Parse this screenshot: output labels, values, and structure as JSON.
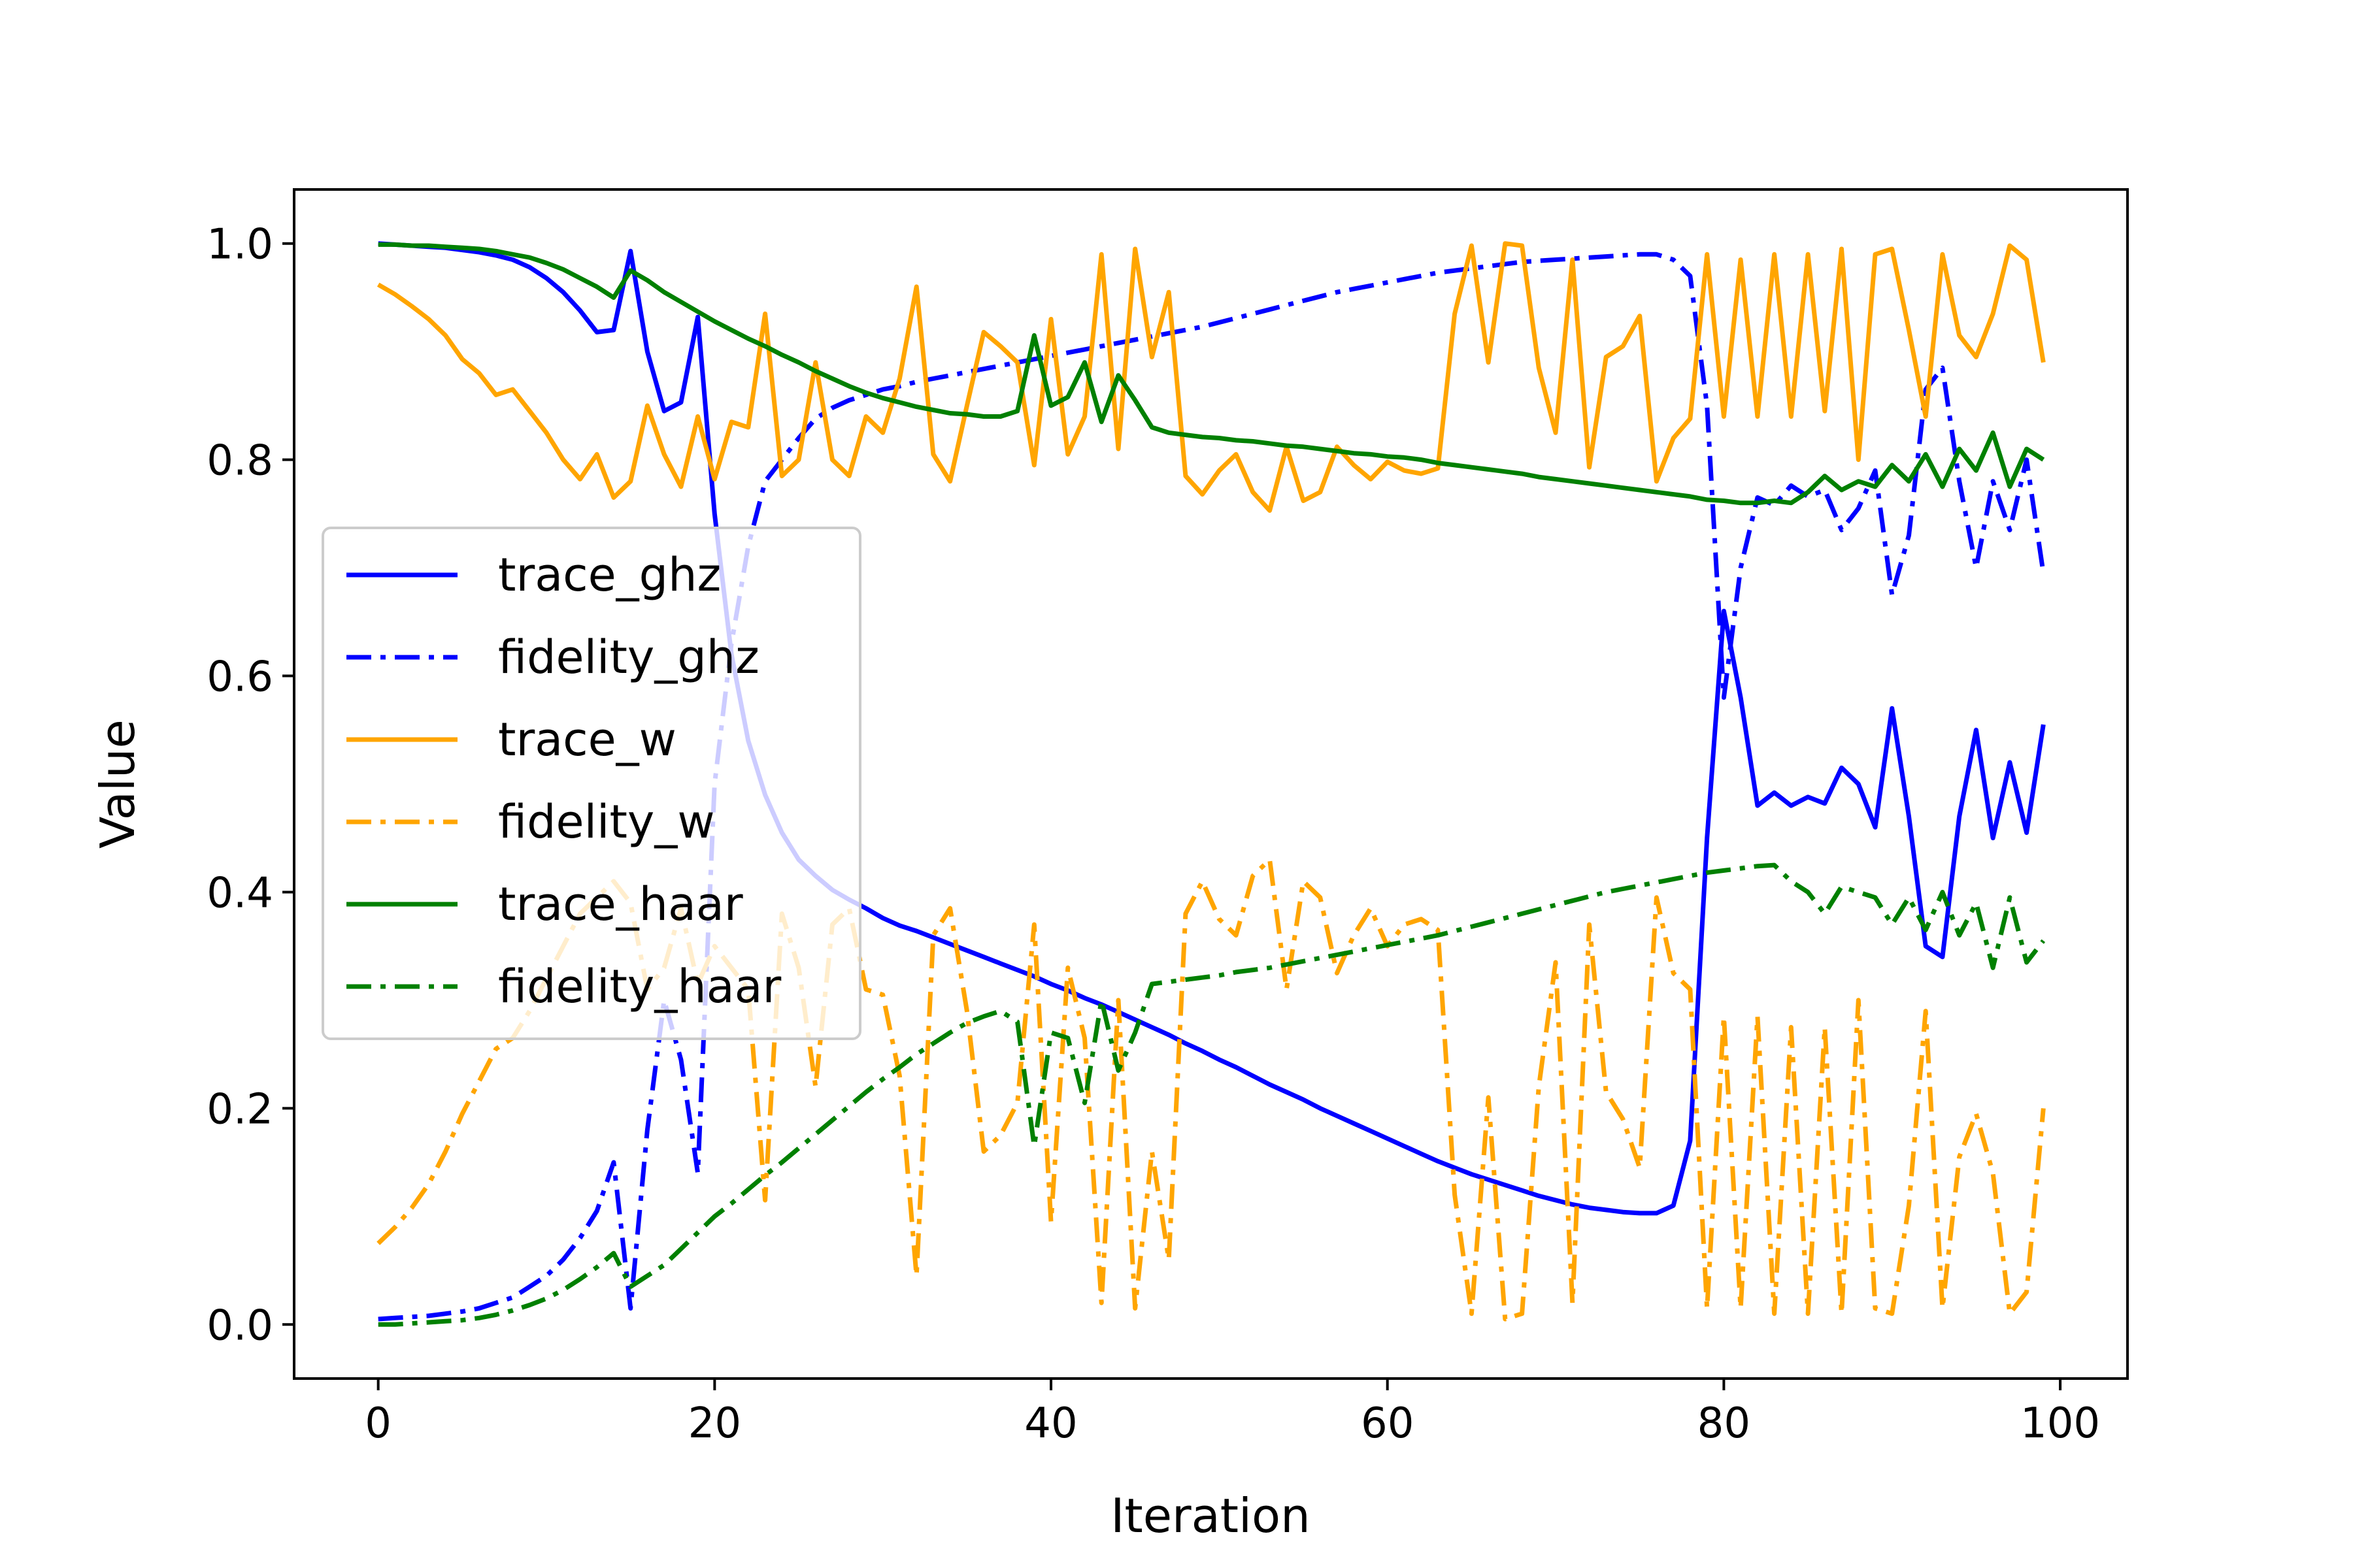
{
  "chart_data": {
    "type": "line",
    "title": "",
    "xlabel": "Iteration",
    "ylabel": "Value",
    "xlim": [
      -5,
      104
    ],
    "ylim": [
      -0.05,
      1.05
    ],
    "xticks": [
      0,
      20,
      40,
      60,
      80,
      100
    ],
    "xtick_labels": [
      "0",
      "20",
      "40",
      "60",
      "80",
      "100"
    ],
    "yticks": [
      0.0,
      0.2,
      0.4,
      0.6,
      0.8,
      1.0
    ],
    "ytick_labels": [
      "0.0",
      "0.2",
      "0.4",
      "0.6",
      "0.8",
      "1.0"
    ],
    "grid": false,
    "legend_position": "center-left",
    "x": [
      0,
      1,
      2,
      3,
      4,
      5,
      6,
      7,
      8,
      9,
      10,
      11,
      12,
      13,
      14,
      15,
      16,
      17,
      18,
      19,
      20,
      21,
      22,
      23,
      24,
      25,
      26,
      27,
      28,
      29,
      30,
      31,
      32,
      33,
      34,
      35,
      36,
      37,
      38,
      39,
      40,
      41,
      42,
      43,
      44,
      45,
      46,
      47,
      48,
      49,
      50,
      51,
      52,
      53,
      54,
      55,
      56,
      57,
      58,
      59,
      60,
      61,
      62,
      63,
      64,
      65,
      66,
      67,
      68,
      69,
      70,
      71,
      72,
      73,
      74,
      75,
      76,
      77,
      78,
      79,
      80,
      81,
      82,
      83,
      84,
      85,
      86,
      87,
      88,
      89,
      90,
      91,
      92,
      93,
      94,
      95,
      96,
      97,
      98,
      99
    ],
    "series": [
      {
        "name": "trace_ghz",
        "color": "#0000ff",
        "style": "solid",
        "values": [
          1.0,
          0.999,
          0.998,
          0.997,
          0.996,
          0.994,
          0.992,
          0.989,
          0.985,
          0.978,
          0.968,
          0.955,
          0.938,
          0.918,
          0.92,
          0.993,
          0.9,
          0.845,
          0.853,
          0.932,
          0.75,
          0.62,
          0.54,
          0.49,
          0.455,
          0.43,
          0.415,
          0.402,
          0.393,
          0.385,
          0.376,
          0.369,
          0.364,
          0.358,
          0.352,
          0.346,
          0.34,
          0.334,
          0.328,
          0.322,
          0.315,
          0.309,
          0.302,
          0.296,
          0.289,
          0.282,
          0.275,
          0.268,
          0.26,
          0.253,
          0.245,
          0.238,
          0.23,
          0.222,
          0.215,
          0.208,
          0.2,
          0.193,
          0.186,
          0.179,
          0.172,
          0.165,
          0.158,
          0.151,
          0.145,
          0.139,
          0.134,
          0.129,
          0.124,
          0.119,
          0.115,
          0.111,
          0.108,
          0.106,
          0.104,
          0.103,
          0.103,
          0.11,
          0.17,
          0.45,
          0.66,
          0.58,
          0.48,
          0.492,
          0.48,
          0.488,
          0.482,
          0.515,
          0.5,
          0.46,
          0.57,
          0.47,
          0.35,
          0.34,
          0.47,
          0.55,
          0.45,
          0.52,
          0.455,
          0.555
        ]
      },
      {
        "name": "fidelity_ghz",
        "color": "#0000ff",
        "style": "dashdot",
        "values": [
          0.005,
          0.006,
          0.007,
          0.008,
          0.01,
          0.012,
          0.015,
          0.02,
          0.025,
          0.035,
          0.045,
          0.06,
          0.08,
          0.105,
          0.15,
          0.015,
          0.18,
          0.3,
          0.245,
          0.14,
          0.5,
          0.63,
          0.72,
          0.78,
          0.8,
          0.82,
          0.838,
          0.848,
          0.855,
          0.86,
          0.865,
          0.868,
          0.872,
          0.875,
          0.878,
          0.881,
          0.884,
          0.887,
          0.89,
          0.893,
          0.896,
          0.899,
          0.902,
          0.905,
          0.908,
          0.911,
          0.914,
          0.917,
          0.92,
          0.923,
          0.927,
          0.931,
          0.935,
          0.939,
          0.943,
          0.947,
          0.951,
          0.955,
          0.958,
          0.961,
          0.964,
          0.967,
          0.97,
          0.973,
          0.975,
          0.977,
          0.979,
          0.981,
          0.983,
          0.984,
          0.985,
          0.986,
          0.987,
          0.988,
          0.989,
          0.99,
          0.99,
          0.985,
          0.97,
          0.85,
          0.58,
          0.7,
          0.765,
          0.758,
          0.776,
          0.766,
          0.772,
          0.735,
          0.755,
          0.79,
          0.675,
          0.73,
          0.865,
          0.885,
          0.78,
          0.7,
          0.78,
          0.735,
          0.8,
          0.695
        ]
      },
      {
        "name": "trace_w",
        "color": "#ffa500",
        "style": "solid",
        "values": [
          0.962,
          0.953,
          0.942,
          0.93,
          0.915,
          0.893,
          0.88,
          0.86,
          0.865,
          0.845,
          0.825,
          0.8,
          0.782,
          0.805,
          0.765,
          0.78,
          0.85,
          0.805,
          0.775,
          0.84,
          0.782,
          0.835,
          0.83,
          0.935,
          0.785,
          0.8,
          0.89,
          0.8,
          0.785,
          0.84,
          0.825,
          0.875,
          0.96,
          0.805,
          0.78,
          0.85,
          0.918,
          0.905,
          0.89,
          0.795,
          0.93,
          0.805,
          0.84,
          0.99,
          0.81,
          0.995,
          0.895,
          0.955,
          0.785,
          0.768,
          0.79,
          0.805,
          0.77,
          0.753,
          0.812,
          0.762,
          0.77,
          0.812,
          0.795,
          0.782,
          0.798,
          0.79,
          0.787,
          0.792,
          0.935,
          0.998,
          0.89,
          1.0,
          0.998,
          0.885,
          0.825,
          0.985,
          0.793,
          0.895,
          0.905,
          0.933,
          0.78,
          0.82,
          0.838,
          0.99,
          0.84,
          0.985,
          0.84,
          0.99,
          0.84,
          0.99,
          0.845,
          0.995,
          0.8,
          0.99,
          0.995,
          0.92,
          0.84,
          0.99,
          0.915,
          0.895,
          0.935,
          0.998,
          0.985,
          0.89
        ]
      },
      {
        "name": "fidelity_w",
        "color": "#ffa500",
        "style": "dashdot",
        "values": [
          0.075,
          0.09,
          0.108,
          0.13,
          0.16,
          0.195,
          0.225,
          0.255,
          0.265,
          0.29,
          0.32,
          0.35,
          0.38,
          0.395,
          0.41,
          0.39,
          0.31,
          0.33,
          0.385,
          0.315,
          0.35,
          0.33,
          0.31,
          0.115,
          0.38,
          0.33,
          0.22,
          0.37,
          0.385,
          0.31,
          0.305,
          0.23,
          0.045,
          0.36,
          0.385,
          0.29,
          0.16,
          0.175,
          0.205,
          0.37,
          0.095,
          0.33,
          0.265,
          0.02,
          0.3,
          0.015,
          0.16,
          0.06,
          0.38,
          0.41,
          0.375,
          0.36,
          0.415,
          0.43,
          0.31,
          0.41,
          0.395,
          0.325,
          0.36,
          0.385,
          0.35,
          0.37,
          0.375,
          0.365,
          0.12,
          0.01,
          0.21,
          0.005,
          0.01,
          0.22,
          0.335,
          0.02,
          0.37,
          0.215,
          0.19,
          0.145,
          0.395,
          0.325,
          0.31,
          0.015,
          0.285,
          0.015,
          0.285,
          0.01,
          0.275,
          0.01,
          0.275,
          0.01,
          0.3,
          0.015,
          0.01,
          0.11,
          0.29,
          0.015,
          0.155,
          0.195,
          0.14,
          0.01,
          0.03,
          0.2
        ]
      },
      {
        "name": "trace_haar",
        "color": "#008000",
        "style": "solid",
        "values": [
          0.999,
          0.999,
          0.998,
          0.998,
          0.997,
          0.996,
          0.995,
          0.993,
          0.99,
          0.987,
          0.982,
          0.976,
          0.968,
          0.96,
          0.95,
          0.975,
          0.966,
          0.955,
          0.946,
          0.937,
          0.928,
          0.92,
          0.912,
          0.905,
          0.897,
          0.89,
          0.882,
          0.875,
          0.868,
          0.862,
          0.857,
          0.853,
          0.849,
          0.846,
          0.843,
          0.842,
          0.84,
          0.84,
          0.845,
          0.915,
          0.85,
          0.858,
          0.89,
          0.835,
          0.878,
          0.855,
          0.83,
          0.825,
          0.823,
          0.821,
          0.82,
          0.818,
          0.817,
          0.815,
          0.813,
          0.812,
          0.81,
          0.808,
          0.806,
          0.805,
          0.803,
          0.802,
          0.8,
          0.797,
          0.795,
          0.793,
          0.791,
          0.789,
          0.787,
          0.784,
          0.782,
          0.78,
          0.778,
          0.776,
          0.774,
          0.772,
          0.77,
          0.768,
          0.766,
          0.763,
          0.762,
          0.76,
          0.76,
          0.762,
          0.76,
          0.77,
          0.785,
          0.772,
          0.78,
          0.775,
          0.795,
          0.78,
          0.805,
          0.775,
          0.81,
          0.79,
          0.825,
          0.775,
          0.81,
          0.8
        ]
      },
      {
        "name": "fidelity_haar",
        "color": "#008000",
        "style": "dashdot",
        "values": [
          0.0,
          0.0,
          0.001,
          0.002,
          0.003,
          0.004,
          0.006,
          0.009,
          0.013,
          0.018,
          0.024,
          0.032,
          0.042,
          0.053,
          0.066,
          0.035,
          0.045,
          0.055,
          0.07,
          0.085,
          0.1,
          0.112,
          0.125,
          0.138,
          0.15,
          0.163,
          0.176,
          0.189,
          0.202,
          0.215,
          0.227,
          0.238,
          0.25,
          0.26,
          0.27,
          0.279,
          0.285,
          0.29,
          0.28,
          0.165,
          0.27,
          0.265,
          0.205,
          0.3,
          0.235,
          0.27,
          0.315,
          0.317,
          0.319,
          0.321,
          0.323,
          0.326,
          0.328,
          0.33,
          0.333,
          0.336,
          0.339,
          0.342,
          0.345,
          0.348,
          0.351,
          0.354,
          0.357,
          0.36,
          0.364,
          0.368,
          0.372,
          0.376,
          0.38,
          0.384,
          0.388,
          0.392,
          0.396,
          0.4,
          0.403,
          0.406,
          0.409,
          0.412,
          0.415,
          0.418,
          0.42,
          0.422,
          0.424,
          0.425,
          0.41,
          0.4,
          0.38,
          0.405,
          0.4,
          0.395,
          0.37,
          0.395,
          0.365,
          0.4,
          0.36,
          0.39,
          0.33,
          0.395,
          0.335,
          0.355
        ]
      }
    ]
  }
}
